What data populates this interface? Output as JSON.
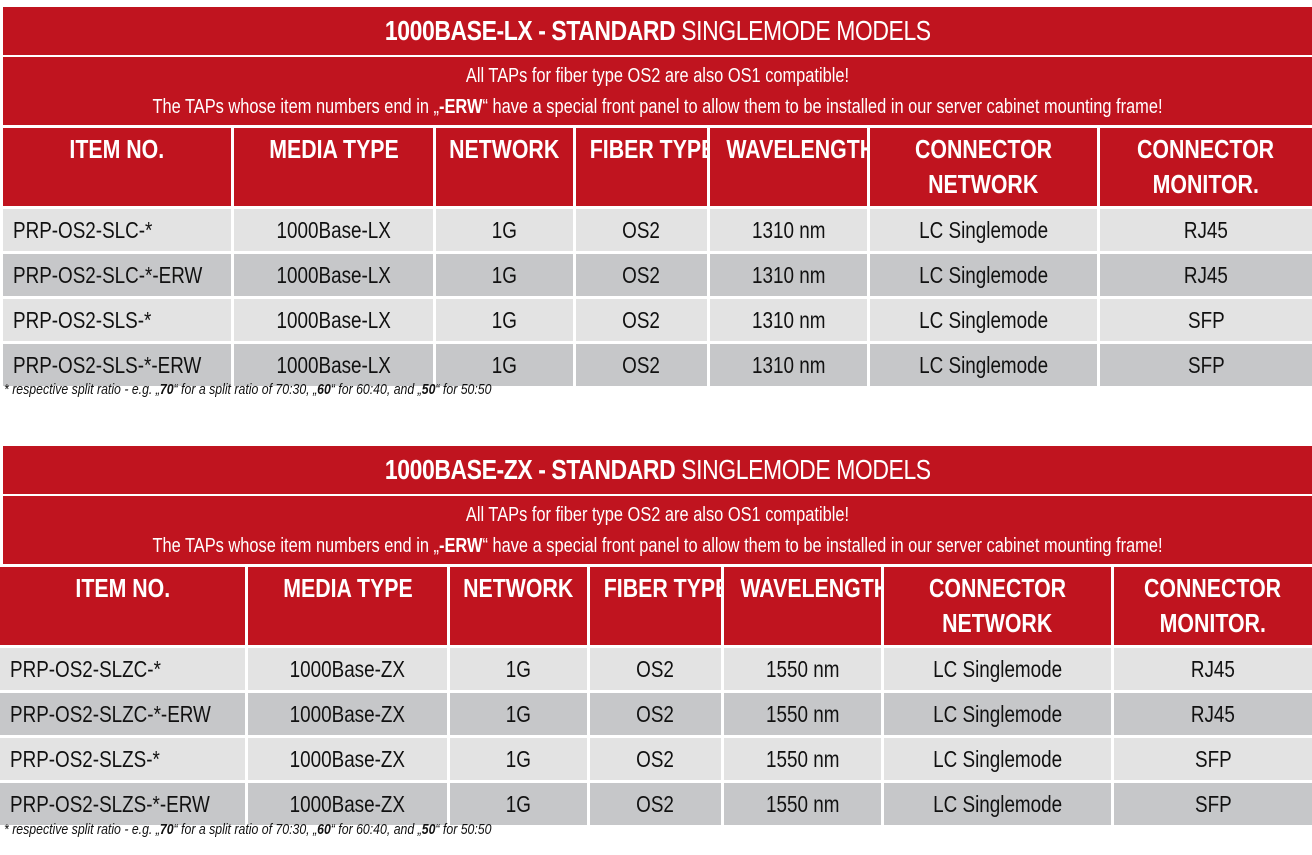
{
  "sections": [
    {
      "title_bold": "1000BASE-LX - STANDARD",
      "title_light": "SINGLEMODE MODELS",
      "notice_line1": "All TAPs for fiber type OS2 are also OS1 compatible!",
      "notice_line2_pre": "The TAPs whose item numbers end in „",
      "notice_line2_bold": "-ERW",
      "notice_line2_post": "“ have a special front panel to allow them to be installed in our server cabinet mounting frame!",
      "headers": [
        "ITEM NO.",
        "MEDIA TYPE",
        "NETWORK",
        "FIBER TYPE",
        "WAVELENGTH",
        "CONNECTOR\nNETWORK",
        "CONNECTOR\nMONITOR."
      ],
      "rows": [
        [
          "PRP-OS2-SLC-*",
          "1000Base-LX",
          "1G",
          "OS2",
          "1310 nm",
          "LC Singlemode",
          "RJ45"
        ],
        [
          "PRP-OS2-SLC-*-ERW",
          "1000Base-LX",
          "1G",
          "OS2",
          "1310 nm",
          "LC Singlemode",
          "RJ45"
        ],
        [
          "PRP-OS2-SLS-*",
          "1000Base-LX",
          "1G",
          "OS2",
          "1310 nm",
          "LC Singlemode",
          "SFP"
        ],
        [
          "PRP-OS2-SLS-*-ERW",
          "1000Base-LX",
          "1G",
          "OS2",
          "1310 nm",
          "LC Singlemode",
          "SFP"
        ]
      ],
      "footnote": {
        "p1": "* respective split ratio - e.g. „",
        "b1": "70",
        "p2": "“ for a split ratio of 70:30, „",
        "b2": "60",
        "p3": "“ for 60:40, and „",
        "b3": "50",
        "p4": "“ for 50:50"
      }
    },
    {
      "title_bold": "1000BASE-ZX - STANDARD",
      "title_light": "SINGLEMODE MODELS",
      "notice_line1": "All TAPs for fiber type OS2 are also OS1 compatible!",
      "notice_line2_pre": "The TAPs whose item numbers end in „",
      "notice_line2_bold": "-ERW",
      "notice_line2_post": "“ have a special front panel to allow them to be installed in our server cabinet mounting frame!",
      "headers": [
        "ITEM NO.",
        "MEDIA TYPE",
        "NETWORK",
        "FIBER TYPE",
        "WAVELENGTH",
        "CONNECTOR\nNETWORK",
        "CONNECTOR\nMONITOR."
      ],
      "rows": [
        [
          "PRP-OS2-SLZC-*",
          "1000Base-ZX",
          "1G",
          "OS2",
          "1550 nm",
          "LC Singlemode",
          "RJ45"
        ],
        [
          "PRP-OS2-SLZC-*-ERW",
          "1000Base-ZX",
          "1G",
          "OS2",
          "1550 nm",
          "LC Singlemode",
          "RJ45"
        ],
        [
          "PRP-OS2-SLZS-*",
          "1000Base-ZX",
          "1G",
          "OS2",
          "1550 nm",
          "LC Singlemode",
          "SFP"
        ],
        [
          "PRP-OS2-SLZS-*-ERW",
          "1000Base-ZX",
          "1G",
          "OS2",
          "1550 nm",
          "LC Singlemode",
          "SFP"
        ]
      ],
      "footnote": {
        "p1": "* respective split ratio - e.g. „",
        "b1": "70",
        "p2": "“ for a split ratio of 70:30, „",
        "b2": "60",
        "p3": "“ for 60:40, and „",
        "b3": "50",
        "p4": "“ for 50:50"
      }
    }
  ],
  "colors": {
    "header_red": "#c0141f",
    "row_light": "#e3e3e3",
    "row_dark": "#c6c7c9",
    "text_white": "#ffffff",
    "text_dark": "#111111"
  }
}
